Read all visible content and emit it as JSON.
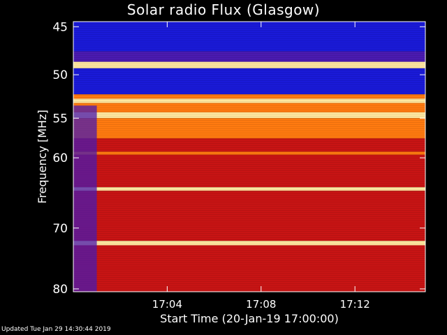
{
  "chart_data": {
    "type": "heatmap",
    "title": "Solar radio Flux (Glasgow)",
    "xlabel": "Start Time (20-Jan-19 17:00:00)",
    "ylabel": "Frequency [MHz]",
    "x_unit": "minutes after 17:00:00",
    "xlim": [
      0,
      15
    ],
    "ylim": [
      44.5,
      80.5
    ],
    "x_ticks": [
      {
        "minute": 4,
        "label": "17:04"
      },
      {
        "minute": 8,
        "label": "17:08"
      },
      {
        "minute": 12,
        "label": "17:12"
      }
    ],
    "y_ticks": [
      {
        "mhz": 45,
        "label": "45"
      },
      {
        "mhz": 50,
        "label": "50"
      },
      {
        "mhz": 55,
        "label": "55"
      },
      {
        "mhz": 60,
        "label": "60"
      },
      {
        "mhz": 70,
        "label": "70"
      },
      {
        "mhz": 80,
        "label": "80"
      }
    ],
    "colors": {
      "low": "#1a1ad8",
      "mid_low": "#4a1ab0",
      "mid": "#c81414",
      "high": "#ff7a10",
      "peak": "#ffe8a0"
    },
    "frequency_bands": [
      {
        "from": 44.5,
        "to": 47.5,
        "level": "low"
      },
      {
        "from": 47.5,
        "to": 48.6,
        "level": "mid_low"
      },
      {
        "from": 48.6,
        "to": 49.3,
        "level": "peak"
      },
      {
        "from": 49.3,
        "to": 52.2,
        "level": "low"
      },
      {
        "from": 52.2,
        "to": 52.7,
        "level": "high"
      },
      {
        "from": 52.7,
        "to": 53.2,
        "level": "peak"
      },
      {
        "from": 53.2,
        "to": 54.3,
        "level": "high"
      },
      {
        "from": 54.3,
        "to": 55.0,
        "level": "peak"
      },
      {
        "from": 55.0,
        "to": 57.5,
        "level": "high"
      },
      {
        "from": 57.5,
        "to": 59.2,
        "level": "mid"
      },
      {
        "from": 59.2,
        "to": 59.6,
        "level": "high"
      },
      {
        "from": 59.6,
        "to": 64.0,
        "level": "mid"
      },
      {
        "from": 64.0,
        "to": 64.5,
        "level": "peak"
      },
      {
        "from": 64.5,
        "to": 72.0,
        "level": "mid"
      },
      {
        "from": 72.0,
        "to": 72.7,
        "level": "peak"
      },
      {
        "from": 72.7,
        "to": 80.5,
        "level": "mid"
      }
    ],
    "early_column": {
      "from_minute": 0.0,
      "to_minute": 1.0,
      "level": "mid_low"
    },
    "footer": "Updated Tue Jan 29 14:30:44 2019"
  }
}
